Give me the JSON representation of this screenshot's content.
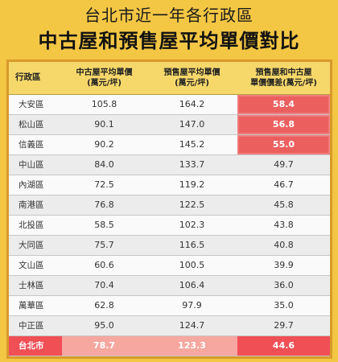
{
  "title": {
    "line1": "台北市近一年各行政區",
    "line2": "中古屋和預售屋平均單價對比"
  },
  "headers": {
    "district": "行政區",
    "used_price": "中古屋平均單價",
    "used_unit": "(萬元/坪)",
    "presale_price": "預售屋平均單價",
    "presale_unit": "(萬元/坪)",
    "diff_line1": "預售屋和中古屋",
    "diff_line2": "單價價差(萬元/坪)"
  },
  "rows": [
    {
      "district": "大安區",
      "used": "105.8",
      "presale": "164.2",
      "diff": "58.4",
      "highlight": true
    },
    {
      "district": "松山區",
      "used": "90.1",
      "presale": "147.0",
      "diff": "56.8",
      "highlight": true
    },
    {
      "district": "信義區",
      "used": "90.2",
      "presale": "145.2",
      "diff": "55.0",
      "highlight": true
    },
    {
      "district": "中山區",
      "used": "84.0",
      "presale": "133.7",
      "diff": "49.7",
      "highlight": false
    },
    {
      "district": "內湖區",
      "used": "72.5",
      "presale": "119.2",
      "diff": "46.7",
      "highlight": false
    },
    {
      "district": "南港區",
      "used": "76.8",
      "presale": "122.5",
      "diff": "45.8",
      "highlight": false
    },
    {
      "district": "北投區",
      "used": "58.5",
      "presale": "102.3",
      "diff": "43.8",
      "highlight": false
    },
    {
      "district": "大同區",
      "used": "75.7",
      "presale": "116.5",
      "diff": "40.8",
      "highlight": false
    },
    {
      "district": "文山區",
      "used": "60.6",
      "presale": "100.5",
      "diff": "39.9",
      "highlight": false
    },
    {
      "district": "士林區",
      "used": "70.4",
      "presale": "106.4",
      "diff": "36.0",
      "highlight": false
    },
    {
      "district": "萬華區",
      "used": "62.8",
      "presale": "97.9",
      "diff": "35.0",
      "highlight": false
    },
    {
      "district": "中正區",
      "used": "95.0",
      "presale": "124.7",
      "diff": "29.7",
      "highlight": false
    }
  ],
  "total": {
    "district": "台北市",
    "used": "78.7",
    "presale": "123.3",
    "diff": "44.6"
  },
  "colors": {
    "background": "#f3c644",
    "header_bg": "#f6d86a",
    "highlight": "#ec5f5f",
    "total_row": "#f04f56"
  }
}
